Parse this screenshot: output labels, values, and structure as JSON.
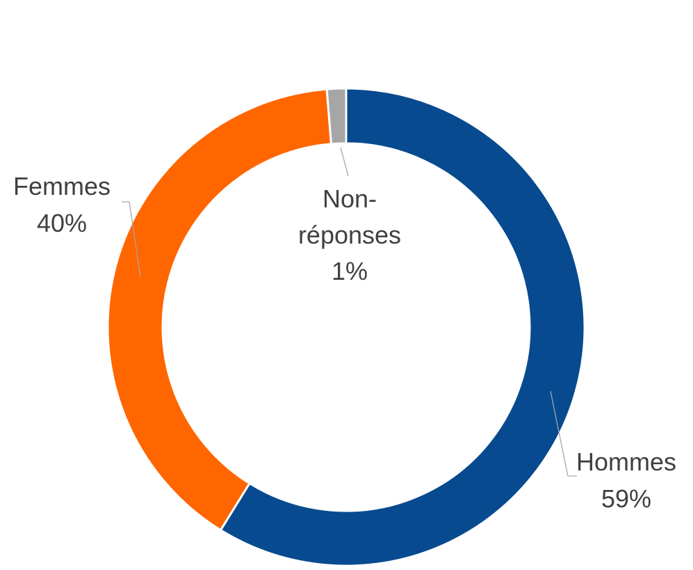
{
  "chart_data": {
    "type": "pie",
    "variant": "donut",
    "title": "",
    "start": "top",
    "direction": "clockwise",
    "legend": "none",
    "slices": [
      {
        "id": "hommes",
        "label": "Hommes",
        "percent_label": "59%",
        "value": 59.0,
        "color": "#074a8f"
      },
      {
        "id": "femmes",
        "label": "Femmes",
        "percent_label": "40%",
        "value": 40.0,
        "color": "#ff6600"
      },
      {
        "id": "non-reponses",
        "label_lines": [
          "Non-",
          "réponses"
        ],
        "percent_label": "1%",
        "value": 1.3,
        "color": "#a6a6a6"
      }
    ]
  }
}
